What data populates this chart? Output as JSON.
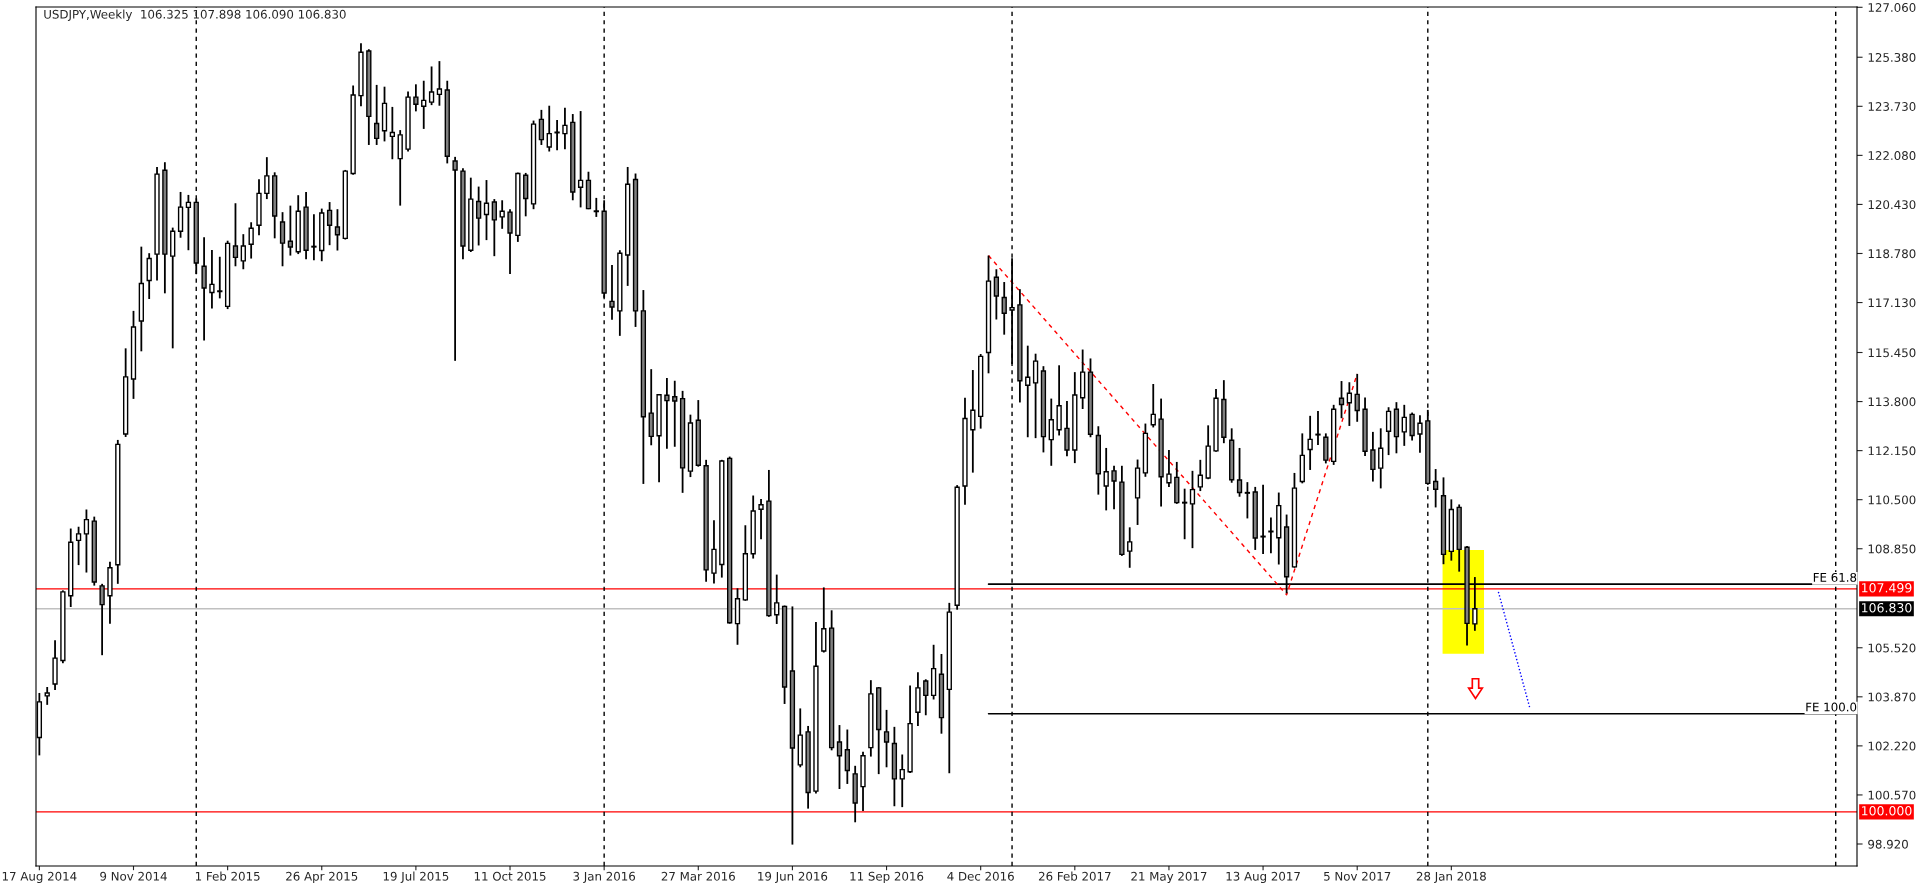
{
  "chart_data": {
    "type": "candlestick",
    "title": "USDJPY,Weekly  106.325 107.898 106.090 106.830",
    "x": [
      "2014-08-17",
      "2014-08-24",
      "2014-08-31",
      "2014-09-07",
      "2014-09-14",
      "2014-09-21",
      "2014-09-28",
      "2014-10-05",
      "2014-10-12",
      "2014-10-19",
      "2014-10-26",
      "2014-11-02",
      "2014-11-09",
      "2014-11-16",
      "2014-11-23",
      "2014-11-30",
      "2014-12-07",
      "2014-12-14",
      "2014-12-21",
      "2014-12-28",
      "2015-01-04",
      "2015-01-11",
      "2015-01-18",
      "2015-01-25",
      "2015-02-01",
      "2015-02-08",
      "2015-02-15",
      "2015-02-22",
      "2015-03-01",
      "2015-03-08",
      "2015-03-15",
      "2015-03-22",
      "2015-03-29",
      "2015-04-05",
      "2015-04-12",
      "2015-04-19",
      "2015-04-26",
      "2015-05-03",
      "2015-05-10",
      "2015-05-17",
      "2015-05-24",
      "2015-05-31",
      "2015-06-07",
      "2015-06-14",
      "2015-06-21",
      "2015-06-28",
      "2015-07-05",
      "2015-07-12",
      "2015-07-19",
      "2015-07-26",
      "2015-08-02",
      "2015-08-09",
      "2015-08-16",
      "2015-08-23",
      "2015-08-30",
      "2015-09-06",
      "2015-09-13",
      "2015-09-20",
      "2015-09-27",
      "2015-10-04",
      "2015-10-11",
      "2015-10-18",
      "2015-10-25",
      "2015-11-01",
      "2015-11-08",
      "2015-11-15",
      "2015-11-22",
      "2015-11-29",
      "2015-12-06",
      "2015-12-13",
      "2015-12-20",
      "2015-12-27",
      "2016-01-03",
      "2016-01-10",
      "2016-01-17",
      "2016-01-24",
      "2016-01-31",
      "2016-02-07",
      "2016-02-14",
      "2016-02-21",
      "2016-02-28",
      "2016-03-06",
      "2016-03-13",
      "2016-03-20",
      "2016-03-27",
      "2016-04-03",
      "2016-04-10",
      "2016-04-17",
      "2016-04-24",
      "2016-05-01",
      "2016-05-08",
      "2016-05-15",
      "2016-05-22",
      "2016-05-29",
      "2016-06-05",
      "2016-06-12",
      "2016-06-19",
      "2016-06-26",
      "2016-07-03",
      "2016-07-10",
      "2016-07-17",
      "2016-07-24",
      "2016-07-31",
      "2016-08-07",
      "2016-08-14",
      "2016-08-21",
      "2016-08-28",
      "2016-09-04",
      "2016-09-11",
      "2016-09-18",
      "2016-09-25",
      "2016-10-02",
      "2016-10-09",
      "2016-10-16",
      "2016-10-23",
      "2016-10-30",
      "2016-11-06",
      "2016-11-13",
      "2016-11-20",
      "2016-11-27",
      "2016-12-04",
      "2016-12-11",
      "2016-12-18",
      "2016-12-25",
      "2017-01-01",
      "2017-01-08",
      "2017-01-15",
      "2017-01-22",
      "2017-01-29",
      "2017-02-05",
      "2017-02-12",
      "2017-02-19",
      "2017-02-26",
      "2017-03-05",
      "2017-03-12",
      "2017-03-19",
      "2017-03-26",
      "2017-04-02",
      "2017-04-09",
      "2017-04-16",
      "2017-04-23",
      "2017-04-30",
      "2017-05-07",
      "2017-05-14",
      "2017-05-21",
      "2017-05-28",
      "2017-06-04",
      "2017-06-11",
      "2017-06-18",
      "2017-06-25",
      "2017-07-02",
      "2017-07-09",
      "2017-07-16",
      "2017-07-23",
      "2017-07-30",
      "2017-08-06",
      "2017-08-13",
      "2017-08-20",
      "2017-08-27",
      "2017-09-03",
      "2017-09-10",
      "2017-09-17",
      "2017-09-24",
      "2017-10-01",
      "2017-10-08",
      "2017-10-15",
      "2017-10-22",
      "2017-10-29",
      "2017-11-05",
      "2017-11-12",
      "2017-11-19",
      "2017-11-26",
      "2017-12-03",
      "2017-12-10",
      "2017-12-17",
      "2017-12-24",
      "2017-12-31",
      "2018-01-07",
      "2018-01-14",
      "2018-01-21",
      "2018-01-28",
      "2018-02-04",
      "2018-02-11",
      "2018-02-18"
    ],
    "ohlc": [
      [
        102.5,
        104.0,
        101.9,
        103.7
      ],
      [
        103.9,
        104.2,
        103.6,
        104.0
      ],
      [
        104.3,
        105.77,
        104.1,
        105.17
      ],
      [
        105.09,
        107.45,
        105.0,
        107.4
      ],
      [
        107.27,
        109.53,
        106.89,
        109.07
      ],
      [
        109.13,
        109.59,
        108.3,
        109.35
      ],
      [
        109.35,
        110.17,
        108.05,
        109.83
      ],
      [
        109.78,
        109.93,
        107.61,
        107.73
      ],
      [
        107.6,
        107.67,
        105.27,
        106.97
      ],
      [
        107.27,
        108.41,
        106.33,
        108.21
      ],
      [
        108.31,
        112.51,
        107.67,
        112.36
      ],
      [
        112.71,
        115.59,
        112.61,
        114.63
      ],
      [
        114.56,
        116.85,
        113.89,
        116.31
      ],
      [
        116.51,
        119.01,
        115.49,
        117.77
      ],
      [
        117.87,
        118.79,
        117.25,
        118.61
      ],
      [
        118.76,
        121.69,
        117.87,
        121.45
      ],
      [
        121.58,
        121.85,
        117.44,
        118.76
      ],
      [
        118.69,
        119.65,
        115.59,
        119.53
      ],
      [
        119.53,
        120.85,
        119.31,
        120.34
      ],
      [
        120.33,
        120.75,
        118.89,
        120.5
      ],
      [
        120.5,
        120.63,
        118.09,
        118.46
      ],
      [
        118.35,
        119.33,
        115.85,
        117.62
      ],
      [
        117.47,
        118.9,
        116.93,
        117.74
      ],
      [
        117.5,
        118.67,
        117.27,
        117.52
      ],
      [
        117.0,
        119.21,
        116.91,
        119.12
      ],
      [
        119.03,
        120.47,
        118.35,
        118.65
      ],
      [
        118.53,
        119.43,
        118.25,
        119.03
      ],
      [
        119.09,
        119.83,
        118.61,
        119.63
      ],
      [
        119.73,
        121.28,
        119.39,
        120.8
      ],
      [
        120.8,
        122.02,
        120.61,
        121.39
      ],
      [
        121.39,
        121.51,
        119.29,
        120.04
      ],
      [
        119.84,
        120.17,
        118.35,
        119.13
      ],
      [
        119.19,
        120.39,
        118.71,
        119.0
      ],
      [
        118.84,
        120.74,
        118.76,
        120.2
      ],
      [
        120.34,
        120.85,
        118.59,
        118.89
      ],
      [
        119.0,
        120.1,
        118.55,
        119.02
      ],
      [
        118.88,
        120.29,
        118.52,
        120.14
      ],
      [
        120.23,
        120.51,
        119.06,
        119.73
      ],
      [
        119.67,
        120.27,
        118.88,
        119.41
      ],
      [
        119.29,
        121.59,
        119.25,
        121.55
      ],
      [
        121.47,
        124.43,
        121.43,
        124.11
      ],
      [
        124.09,
        125.85,
        123.73,
        125.55
      ],
      [
        125.59,
        125.65,
        122.43,
        123.39
      ],
      [
        123.15,
        124.45,
        122.43,
        122.65
      ],
      [
        122.91,
        124.39,
        122.55,
        123.83
      ],
      [
        122.72,
        123.71,
        121.95,
        122.85
      ],
      [
        121.97,
        122.93,
        120.39,
        122.77
      ],
      [
        122.29,
        124.23,
        122.21,
        124.04
      ],
      [
        124.04,
        124.47,
        123.56,
        123.8
      ],
      [
        123.73,
        124.59,
        122.97,
        123.93
      ],
      [
        123.87,
        125.07,
        123.77,
        124.21
      ],
      [
        124.13,
        125.25,
        123.75,
        124.31
      ],
      [
        124.28,
        124.59,
        121.81,
        122.05
      ],
      [
        121.89,
        122.03,
        115.17,
        121.59
      ],
      [
        121.55,
        121.65,
        118.59,
        119.03
      ],
      [
        118.89,
        121.33,
        118.83,
        120.61
      ],
      [
        120.53,
        121.03,
        119.05,
        119.97
      ],
      [
        120.09,
        121.25,
        119.23,
        120.47
      ],
      [
        120.51,
        120.61,
        118.69,
        119.91
      ],
      [
        120.01,
        120.57,
        119.61,
        120.2
      ],
      [
        120.17,
        120.27,
        118.09,
        119.47
      ],
      [
        119.39,
        121.5,
        119.17,
        121.47
      ],
      [
        121.41,
        121.49,
        120.03,
        120.63
      ],
      [
        120.45,
        123.25,
        120.27,
        123.13
      ],
      [
        123.29,
        123.61,
        122.43,
        122.61
      ],
      [
        122.36,
        123.75,
        122.21,
        122.81
      ],
      [
        122.84,
        123.27,
        122.25,
        122.86
      ],
      [
        122.81,
        123.68,
        122.29,
        123.09
      ],
      [
        123.19,
        123.47,
        120.57,
        120.85
      ],
      [
        121.01,
        123.57,
        120.33,
        121.24
      ],
      [
        121.24,
        121.53,
        120.27,
        120.29
      ],
      [
        120.19,
        120.65,
        120.01,
        120.21
      ],
      [
        120.2,
        120.57,
        117.29,
        117.45
      ],
      [
        117.17,
        118.39,
        116.55,
        116.98
      ],
      [
        116.85,
        118.89,
        116.01,
        118.79
      ],
      [
        118.73,
        121.69,
        117.69,
        121.11
      ],
      [
        121.27,
        121.47,
        116.31,
        116.85
      ],
      [
        116.85,
        117.55,
        111.03,
        113.29
      ],
      [
        113.41,
        114.89,
        112.33,
        112.63
      ],
      [
        112.65,
        114.05,
        111.09,
        114.03
      ],
      [
        114.01,
        114.59,
        112.21,
        113.83
      ],
      [
        113.96,
        114.5,
        112.28,
        113.82
      ],
      [
        113.9,
        114.16,
        110.73,
        111.57
      ],
      [
        111.46,
        113.36,
        111.26,
        113.08
      ],
      [
        113.17,
        113.85,
        111.61,
        111.66
      ],
      [
        111.64,
        111.84,
        107.74,
        108.14
      ],
      [
        108.03,
        109.81,
        107.68,
        108.83
      ],
      [
        108.32,
        111.84,
        107.88,
        111.8
      ],
      [
        111.89,
        111.95,
        106.33,
        106.36
      ],
      [
        106.33,
        107.52,
        105.62,
        107.17
      ],
      [
        107.13,
        109.64,
        107.1,
        108.68
      ],
      [
        108.68,
        110.64,
        108.52,
        110.12
      ],
      [
        110.18,
        110.52,
        109.17,
        110.33
      ],
      [
        110.45,
        111.5,
        106.56,
        106.6
      ],
      [
        106.63,
        107.98,
        106.32,
        107.03
      ],
      [
        106.91,
        106.94,
        103.63,
        104.2
      ],
      [
        104.74,
        106.91,
        98.9,
        102.15
      ],
      [
        101.58,
        103.48,
        101.5,
        102.58
      ],
      [
        102.69,
        102.89,
        100.11,
        100.65
      ],
      [
        100.7,
        106.39,
        100.62,
        104.9
      ],
      [
        105.41,
        107.55,
        105.36,
        106.16
      ],
      [
        106.18,
        106.78,
        102.07,
        102.16
      ],
      [
        102.35,
        102.92,
        100.77,
        101.89
      ],
      [
        102.09,
        102.77,
        100.94,
        101.39
      ],
      [
        101.28,
        101.55,
        99.65,
        100.3
      ],
      [
        100.85,
        102.02,
        100.03,
        101.89
      ],
      [
        102.16,
        104.43,
        101.86,
        103.97
      ],
      [
        104.17,
        104.2,
        101.27,
        102.77
      ],
      [
        102.69,
        103.43,
        101.5,
        102.35
      ],
      [
        102.3,
        102.86,
        100.19,
        101.11
      ],
      [
        101.11,
        101.93,
        100.16,
        101.42
      ],
      [
        101.35,
        104.25,
        101.31,
        102.97
      ],
      [
        103.35,
        104.7,
        102.89,
        104.17
      ],
      [
        104.4,
        104.46,
        103.25,
        103.92
      ],
      [
        103.92,
        105.62,
        103.78,
        104.82
      ],
      [
        104.63,
        105.31,
        102.63,
        103.17
      ],
      [
        104.12,
        107.03,
        101.3,
        106.72
      ],
      [
        106.95,
        110.99,
        106.8,
        110.92
      ],
      [
        110.96,
        113.93,
        110.33,
        113.23
      ],
      [
        112.85,
        114.86,
        111.41,
        113.51
      ],
      [
        113.3,
        115.4,
        112.89,
        115.32
      ],
      [
        115.45,
        118.71,
        114.75,
        117.85
      ],
      [
        117.98,
        118.25,
        116.56,
        117.35
      ],
      [
        117.3,
        117.82,
        116.05,
        116.77
      ],
      [
        116.88,
        118.62,
        115.06,
        116.96
      ],
      [
        117.05,
        117.58,
        113.77,
        114.5
      ],
      [
        114.35,
        115.68,
        112.6,
        114.62
      ],
      [
        114.43,
        115.41,
        112.57,
        115.16
      ],
      [
        114.83,
        114.99,
        112.09,
        112.62
      ],
      [
        112.52,
        113.9,
        111.64,
        113.19
      ],
      [
        112.85,
        115.02,
        112.66,
        113.66
      ],
      [
        112.9,
        113.82,
        111.96,
        112.17
      ],
      [
        112.17,
        114.79,
        111.73,
        114.02
      ],
      [
        113.93,
        115.55,
        113.55,
        114.79
      ],
      [
        114.79,
        115.25,
        112.6,
        112.7
      ],
      [
        112.66,
        112.97,
        110.67,
        111.37
      ],
      [
        110.96,
        112.24,
        110.14,
        111.44
      ],
      [
        111.47,
        111.64,
        110.18,
        111.13
      ],
      [
        111.09,
        111.64,
        108.61,
        108.66
      ],
      [
        108.77,
        109.57,
        108.21,
        109.08
      ],
      [
        110.56,
        111.85,
        109.65,
        111.56
      ],
      [
        111.4,
        113.06,
        111.27,
        112.73
      ],
      [
        113.02,
        114.39,
        112.93,
        113.37
      ],
      [
        113.21,
        113.9,
        110.27,
        111.27
      ],
      [
        111.07,
        112.17,
        110.93,
        111.36
      ],
      [
        111.25,
        111.77,
        110.36,
        110.4
      ],
      [
        110.39,
        110.87,
        109.17,
        110.41
      ],
      [
        110.36,
        111.47,
        108.87,
        110.84
      ],
      [
        110.93,
        111.84,
        110.79,
        111.32
      ],
      [
        111.23,
        113.0,
        111.19,
        112.3
      ],
      [
        112.14,
        114.22,
        112.11,
        113.91
      ],
      [
        113.87,
        114.52,
        112.4,
        112.6
      ],
      [
        112.5,
        112.9,
        111.07,
        111.17
      ],
      [
        111.16,
        112.24,
        110.6,
        110.74
      ],
      [
        110.72,
        111.09,
        109.87,
        110.74
      ],
      [
        110.76,
        110.93,
        108.81,
        109.21
      ],
      [
        109.25,
        111.0,
        108.67,
        109.27
      ],
      [
        109.42,
        109.9,
        108.7,
        109.44
      ],
      [
        109.22,
        110.74,
        108.32,
        110.3
      ],
      [
        109.58,
        110.0,
        107.35,
        107.91
      ],
      [
        108.24,
        111.4,
        108.21,
        110.89
      ],
      [
        111.11,
        112.73,
        111.05,
        111.99
      ],
      [
        112.19,
        113.32,
        111.5,
        112.53
      ],
      [
        112.68,
        113.48,
        112.34,
        112.7
      ],
      [
        112.6,
        112.73,
        111.72,
        111.83
      ],
      [
        111.79,
        113.69,
        111.67,
        113.54
      ],
      [
        113.91,
        114.49,
        113.24,
        113.7
      ],
      [
        113.76,
        114.45,
        112.98,
        114.08
      ],
      [
        114.04,
        114.73,
        113.12,
        113.5
      ],
      [
        113.54,
        113.94,
        111.97,
        112.13
      ],
      [
        112.17,
        112.78,
        111.11,
        111.52
      ],
      [
        111.56,
        112.9,
        110.88,
        112.23
      ],
      [
        112.8,
        113.61,
        112.0,
        113.47
      ],
      [
        113.54,
        113.78,
        112.06,
        112.62
      ],
      [
        112.78,
        113.69,
        112.31,
        113.27
      ],
      [
        113.37,
        113.43,
        112.49,
        112.66
      ],
      [
        112.71,
        113.34,
        112.08,
        113.07
      ],
      [
        113.15,
        113.52,
        111.0,
        111.05
      ],
      [
        111.11,
        111.53,
        110.24,
        110.85
      ],
      [
        110.63,
        111.25,
        108.33,
        108.66
      ],
      [
        108.76,
        110.51,
        108.45,
        110.17
      ],
      [
        110.24,
        110.34,
        108.08,
        108.83
      ],
      [
        108.9,
        108.94,
        105.6,
        106.34
      ],
      [
        106.325,
        107.898,
        106.09,
        106.83
      ]
    ],
    "series": [
      {
        "type": "line",
        "name": "FE 61.8",
        "color": "#000000",
        "line_style": "solid",
        "x": [
          "2016-12-11",
          "2019-01-25"
        ],
        "values": [
          107.66,
          107.66
        ]
      },
      {
        "type": "line",
        "name": "FE 100.0",
        "color": "#000000",
        "line_style": "solid",
        "x": [
          "2016-12-11",
          "2019-01-25"
        ],
        "values": [
          103.3,
          103.3
        ]
      },
      {
        "type": "line",
        "color": "#ff0000",
        "line_style": "dashed",
        "x": [
          "2016-12-11",
          "2017-09-03",
          "2017-11-05"
        ],
        "values": [
          118.71,
          107.3,
          114.73
        ]
      },
      {
        "type": "line",
        "color": "#0000ff",
        "line_style": "dotted",
        "x": [
          "2018-03-11",
          "2018-04-08"
        ],
        "values": [
          107.4,
          103.5
        ]
      }
    ],
    "ref_lines": [
      {
        "axis": "y",
        "value": 107.499,
        "label": "107.499",
        "color": "#ff0000",
        "line_style": "solid"
      },
      {
        "axis": "y",
        "value": 106.83,
        "label": "106.830",
        "color": "#c0c0c0",
        "line_style": "solid"
      },
      {
        "axis": "y",
        "value": 100.0,
        "label": "100.000",
        "color": "#ff0000",
        "line_style": "solid"
      },
      {
        "axis": "x",
        "value": "2015-01-04",
        "color": "#000000",
        "line_style": "dashed"
      },
      {
        "axis": "x",
        "value": "2016-01-03",
        "color": "#000000",
        "line_style": "dashed"
      },
      {
        "axis": "x",
        "value": "2017-01-01",
        "color": "#000000",
        "line_style": "dashed"
      },
      {
        "axis": "x",
        "value": "2018-01-07",
        "color": "#000000",
        "line_style": "dashed"
      },
      {
        "axis": "x",
        "value": "2019-01-06",
        "color": "#000000",
        "line_style": "dashed"
      }
    ],
    "xlim": [
      "2014-08-14",
      "2019-01-25"
    ],
    "xticks": [
      {
        "value": "2014-08-17",
        "label": "17 Aug 2014"
      },
      {
        "value": "2014-11-09",
        "label": "9 Nov 2014"
      },
      {
        "value": "2015-02-01",
        "label": "1 Feb 2015"
      },
      {
        "value": "2015-04-26",
        "label": "26 Apr 2015"
      },
      {
        "value": "2015-07-19",
        "label": "19 Jul 2015"
      },
      {
        "value": "2015-10-11",
        "label": "11 Oct 2015"
      },
      {
        "value": "2016-01-03",
        "label": "3 Jan 2016"
      },
      {
        "value": "2016-03-27",
        "label": "27 Mar 2016"
      },
      {
        "value": "2016-06-19",
        "label": "19 Jun 2016"
      },
      {
        "value": "2016-09-11",
        "label": "11 Sep 2016"
      },
      {
        "value": "2016-12-04",
        "label": "4 Dec 2016"
      },
      {
        "value": "2017-02-26",
        "label": "26 Feb 2017"
      },
      {
        "value": "2017-05-21",
        "label": "21 May 2017"
      },
      {
        "value": "2017-08-13",
        "label": "13 Aug 2017"
      },
      {
        "value": "2017-11-05",
        "label": "5 Nov 2017"
      },
      {
        "value": "2018-01-28",
        "label": "28 Jan 2018"
      }
    ],
    "ylim": [
      98.18,
      127.07
    ],
    "yticks": [
      {
        "value": 98.92,
        "label": "98.920"
      },
      {
        "value": 100.57,
        "label": "100.570"
      },
      {
        "value": 102.22,
        "label": "102.220"
      },
      {
        "value": 103.87,
        "label": "103.870"
      },
      {
        "value": 105.52,
        "label": "105.520"
      },
      {
        "value": 108.85,
        "label": "108.850"
      },
      {
        "value": 110.5,
        "label": "110.500"
      },
      {
        "value": 112.15,
        "label": "112.150"
      },
      {
        "value": 113.8,
        "label": "113.800"
      },
      {
        "value": 115.45,
        "label": "115.450"
      },
      {
        "value": 117.13,
        "label": "117.130"
      },
      {
        "value": 118.78,
        "label": "118.780"
      },
      {
        "value": 120.43,
        "label": "120.430"
      },
      {
        "value": 122.08,
        "label": "122.080"
      },
      {
        "value": 123.73,
        "label": "123.730"
      },
      {
        "value": 125.38,
        "label": "125.380"
      },
      {
        "value": 127.06,
        "label": "127.060"
      }
    ],
    "grid": false,
    "legend": false
  }
}
